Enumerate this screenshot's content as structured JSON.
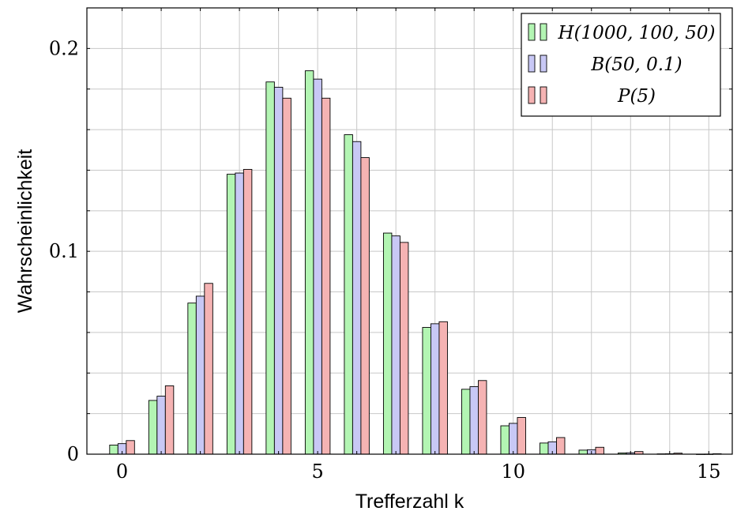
{
  "chart_data": {
    "type": "bar",
    "title": "",
    "xlabel": "Trefferzahl k",
    "ylabel": "Wahrscheinlichkeit",
    "xlim": [
      -0.9,
      15.6
    ],
    "ylim": [
      0,
      0.22
    ],
    "x_ticks": [
      0,
      5,
      10,
      15
    ],
    "x_minor_ticks": [
      0,
      1,
      2,
      3,
      4,
      5,
      6,
      7,
      8,
      9,
      10,
      11,
      12,
      13,
      14,
      15
    ],
    "y_ticks": [
      {
        "value": 0,
        "label": "0"
      },
      {
        "value": 0.1,
        "label": "0.1"
      },
      {
        "value": 0.2,
        "label": "0.2"
      }
    ],
    "y_minor_ticks": [
      0.02,
      0.04,
      0.06,
      0.08,
      0.12,
      0.14,
      0.16,
      0.18
    ],
    "grid": true,
    "legend_position": "top-right",
    "categories": [
      0,
      1,
      2,
      3,
      4,
      5,
      6,
      7,
      8,
      9,
      10,
      11,
      12,
      13,
      14,
      15
    ],
    "series": [
      {
        "name": "H(1000, 100, 50)",
        "color": "#b3f5b3",
        "values": [
          0.0045,
          0.0265,
          0.0745,
          0.138,
          0.1835,
          0.189,
          0.1575,
          0.109,
          0.0625,
          0.032,
          0.014,
          0.0055,
          0.002,
          0.0006,
          0.00015,
          3e-05
        ]
      },
      {
        "name": "B(50, 0.1)",
        "color": "#c8c8f5",
        "values": [
          0.0052,
          0.0286,
          0.0779,
          0.1386,
          0.1809,
          0.1849,
          0.1541,
          0.1076,
          0.0643,
          0.0333,
          0.0152,
          0.0061,
          0.0022,
          0.0007,
          0.0002,
          5e-05
        ]
      },
      {
        "name": "P(5)",
        "color": "#f5b3b3",
        "values": [
          0.0067,
          0.0337,
          0.0842,
          0.1404,
          0.1755,
          0.1755,
          0.1462,
          0.1044,
          0.0653,
          0.0363,
          0.0181,
          0.0082,
          0.0034,
          0.0013,
          0.0005,
          0.0002
        ]
      }
    ]
  }
}
